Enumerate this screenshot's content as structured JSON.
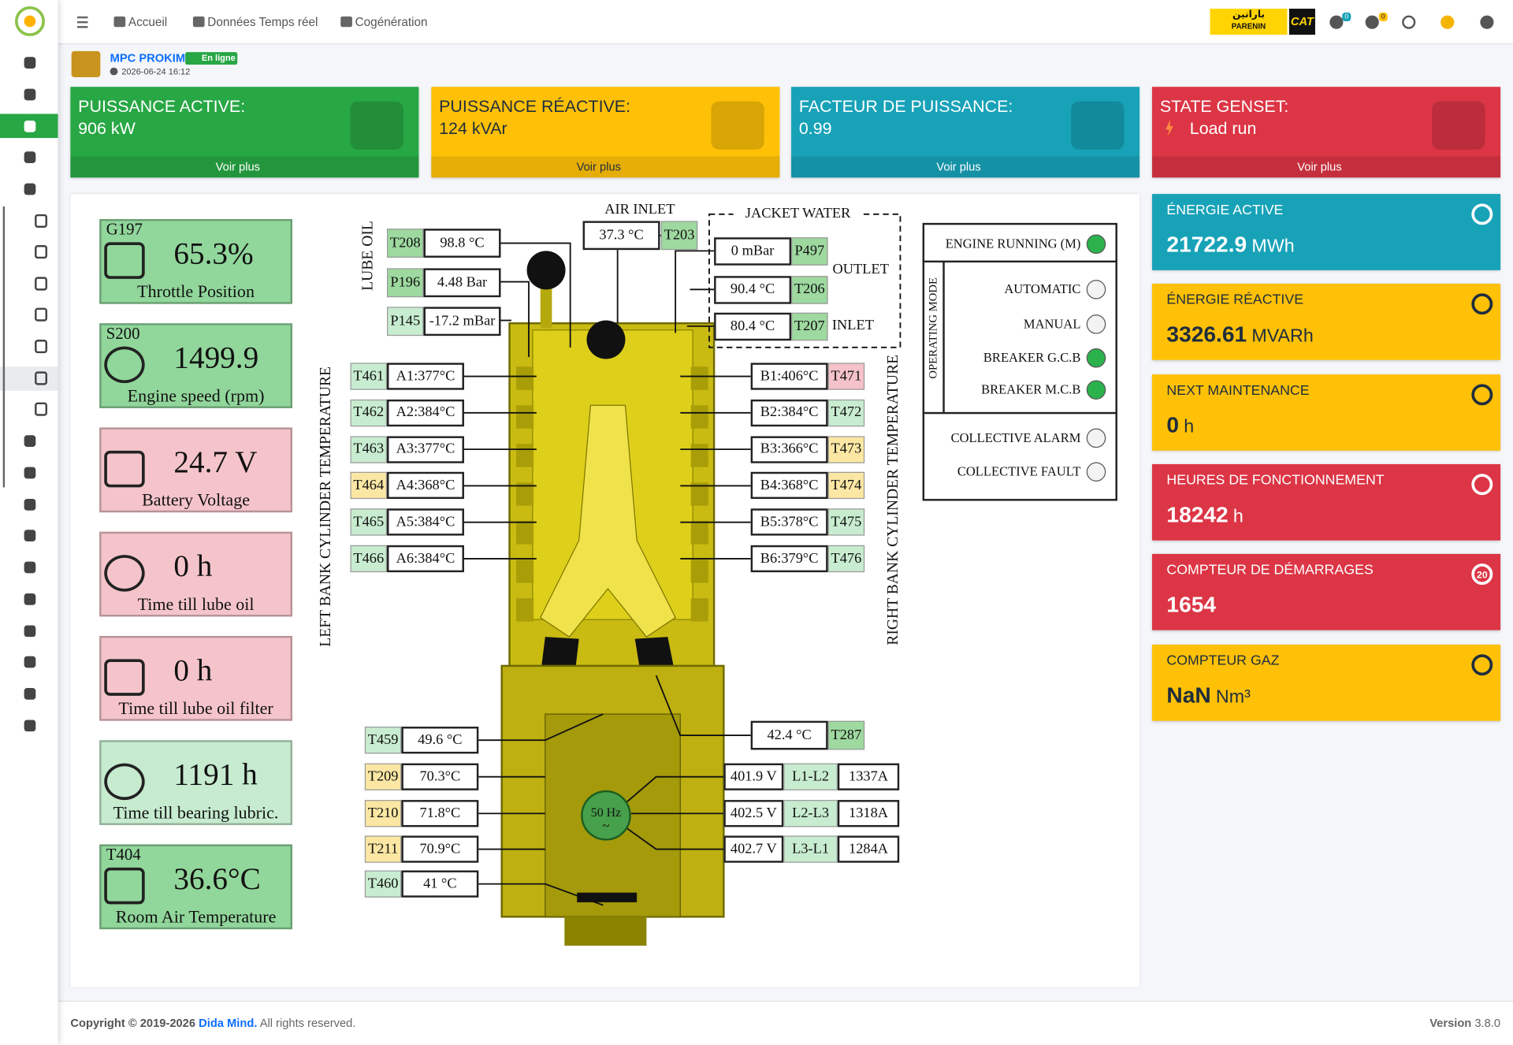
{
  "nav": {
    "items": [
      "Accueil",
      "Données Temps réel",
      "Cogénération"
    ]
  },
  "brand": {
    "partner_arabic": "بارانين",
    "partner": "PARENIN",
    "maker": "CAT",
    "badges": [
      "0",
      "0"
    ]
  },
  "site": {
    "name": "MPC PROKIM",
    "status": "En ligne",
    "timestamp": "2026-06-24 16:12"
  },
  "kpi_cards": [
    {
      "title": "PUISSANCE ACTIVE:",
      "value": "906 kW",
      "link": "Voir plus",
      "color": "#28a745"
    },
    {
      "title": "PUISSANCE RÉACTIVE:",
      "value": "124 kVAr",
      "link": "Voir plus",
      "color": "#ffc107"
    },
    {
      "title": "FACTEUR DE PUISSANCE:",
      "value": "0.99",
      "link": "Voir plus",
      "color": "#17a2b8"
    },
    {
      "title": "STATE GENSET:",
      "value": "Load run",
      "link": "Voir plus",
      "color": "#dc3545"
    }
  ],
  "energy_cards": [
    {
      "title": "ÉNERGIE ACTIVE",
      "value": "21722.9",
      "unit": "MWh",
      "color": "#17a2b8"
    },
    {
      "title": "ÉNERGIE RÉACTIVE",
      "value": "3326.61",
      "unit": "MVARh",
      "color": "#ffc107"
    },
    {
      "title": "NEXT MAINTENANCE",
      "value": "0",
      "unit": "h",
      "color": "#ffc107"
    },
    {
      "title": "HEURES DE FONCTIONNEMENT",
      "value": "18242",
      "unit": "h",
      "color": "#dc3545"
    },
    {
      "title": "COMPTEUR DE DÉMARRAGES",
      "value": "1654",
      "badge": "20",
      "color": "#dc3545"
    },
    {
      "title": "COMPTEUR GAZ",
      "value": "NaN",
      "unit": "Nm³",
      "color": "#ffc107"
    }
  ],
  "gauges": [
    {
      "tag": "G197",
      "value": "65.3%",
      "label": "Throttle Position",
      "color": "#91d69b"
    },
    {
      "tag": "S200",
      "value": "1499.9",
      "label": "Engine speed (rpm)",
      "color": "#91d69b"
    },
    {
      "value": "24.7 V",
      "label": "Battery Voltage",
      "color": "#f5c4cb"
    },
    {
      "value": "0 h",
      "label": "Time till lube oil",
      "color": "#f5c4cb"
    },
    {
      "value": "0 h",
      "label": "Time till lube oil filter",
      "color": "#f5c4cb"
    },
    {
      "value": "1191 h",
      "label": "Time till bearing lubric.",
      "color": "#c6ebcf"
    },
    {
      "tag": "T404",
      "value": "36.6°C",
      "label": "Room Air Temperature",
      "color": "#91d69b"
    }
  ],
  "diagram": {
    "lube_oil": {
      "title": "LUBE OIL",
      "sensors": [
        {
          "tag": "T208",
          "value": "98.8 °C",
          "tag_color": "#9ed99f"
        },
        {
          "tag": "P196",
          "value": "4.48 Bar",
          "tag_color": "#9ed99f"
        },
        {
          "tag": "P145",
          "value": "-17.2 mBar",
          "tag_color": "#c8ecd0"
        }
      ]
    },
    "air_inlet": {
      "title": "AIR INLET",
      "tag": "T203",
      "value": "37.3 °C",
      "tag_color": "#9ed99f"
    },
    "jacket_water": {
      "title": "JACKET WATER",
      "outlet": "OUTLET",
      "inlet": "INLET",
      "sensors": [
        {
          "tag": "P497",
          "value": "0 mBar",
          "tag_color": "#9ed99f"
        },
        {
          "tag": "T206",
          "value": "90.4 °C",
          "tag_color": "#9ed99f"
        },
        {
          "tag": "T207",
          "value": "80.4 °C",
          "tag_color": "#9ed99f"
        }
      ]
    },
    "left_bank": {
      "title": "LEFT BANK CYLINDER TEMPERATURE",
      "sensors": [
        {
          "tag": "T461",
          "value": "A1:377°C",
          "tag_color": "#c8ecd0"
        },
        {
          "tag": "T462",
          "value": "A2:384°C",
          "tag_color": "#c8ecd0"
        },
        {
          "tag": "T463",
          "value": "A3:377°C",
          "tag_color": "#c8ecd0"
        },
        {
          "tag": "T464",
          "value": "A4:368°C",
          "tag_color": "#fbe7a3"
        },
        {
          "tag": "T465",
          "value": "A5:384°C",
          "tag_color": "#c8ecd0"
        },
        {
          "tag": "T466",
          "value": "A6:384°C",
          "tag_color": "#c8ecd0"
        }
      ]
    },
    "right_bank": {
      "title": "RIGHT BANK CYLINDER TEMPERATURE",
      "sensors": [
        {
          "tag": "T471",
          "value": "B1:406°C",
          "tag_color": "#f4c2c8"
        },
        {
          "tag": "T472",
          "value": "B2:384°C",
          "tag_color": "#c8ecd0"
        },
        {
          "tag": "T473",
          "value": "B3:366°C",
          "tag_color": "#fbe7a3"
        },
        {
          "tag": "T474",
          "value": "B4:368°C",
          "tag_color": "#fbe7a3"
        },
        {
          "tag": "T475",
          "value": "B5:378°C",
          "tag_color": "#c8ecd0"
        },
        {
          "tag": "T476",
          "value": "B6:379°C",
          "tag_color": "#c8ecd0"
        }
      ]
    },
    "lower_left": {
      "sensors": [
        {
          "tag": "T459",
          "value": "49.6 °C",
          "tag_color": "#c8ecd0"
        },
        {
          "tag": "T209",
          "value": "70.3°C",
          "tag_color": "#fbe7a3"
        },
        {
          "tag": "T210",
          "value": "71.8°C",
          "tag_color": "#fbe7a3"
        },
        {
          "tag": "T211",
          "value": "70.9°C",
          "tag_color": "#fbe7a3"
        },
        {
          "tag": "T460",
          "value": "41 °C",
          "tag_color": "#c8ecd0"
        }
      ]
    },
    "lower_right": {
      "tag": "T287",
      "value": "42.4 °C",
      "tag_color": "#9ed99f"
    },
    "generator": {
      "frequency": "50 Hz",
      "symbol": "~",
      "phases": [
        {
          "voltage": "401.9 V",
          "phase": "L1-L2",
          "current": "1337A"
        },
        {
          "voltage": "402.5 V",
          "phase": "L2-L3",
          "current": "1318A"
        },
        {
          "voltage": "402.7 V",
          "phase": "L3-L1",
          "current": "1284A"
        }
      ]
    }
  },
  "status": {
    "engine": {
      "label": "ENGINE RUNNING (M)",
      "on": true
    },
    "operating_mode": {
      "title": "OPERATING MODE",
      "items": [
        {
          "label": "AUTOMATIC",
          "on": false
        },
        {
          "label": "MANUAL",
          "on": false
        },
        {
          "label": "BREAKER G.C.B",
          "on": true
        },
        {
          "label": "BREAKER M.C.B",
          "on": true
        }
      ]
    },
    "alarms": [
      {
        "label": "COLLECTIVE ALARM",
        "on": false
      },
      {
        "label": "COLLECTIVE FAULT",
        "on": false
      }
    ]
  },
  "footer": {
    "copyright": "Copyright © 2019-2026",
    "company": "Dida Mind.",
    "rights": "All rights reserved.",
    "version_label": "Version",
    "version": "3.8.0"
  }
}
